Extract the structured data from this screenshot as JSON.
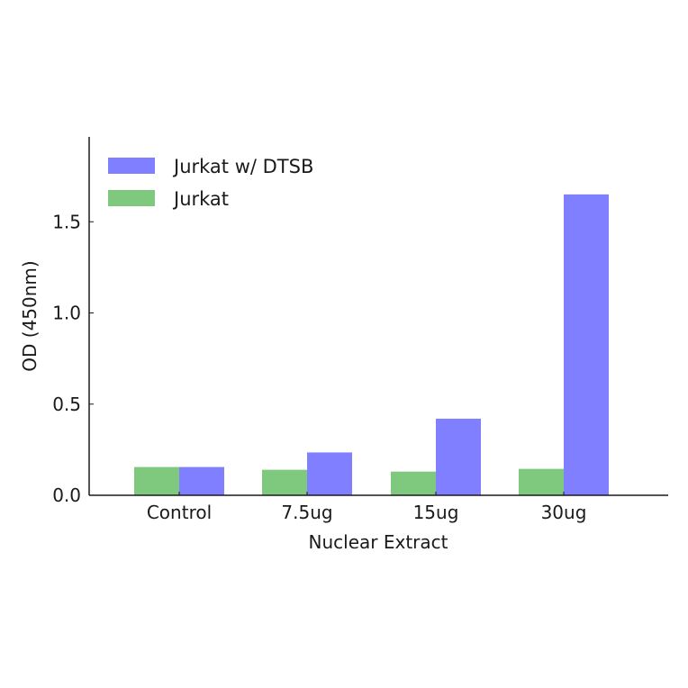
{
  "chart_data": {
    "type": "bar",
    "title": "",
    "xlabel": "Nuclear Extract",
    "ylabel": "OD (450nm)",
    "categories": [
      "Control",
      "7.5ug",
      "15ug",
      "30ug"
    ],
    "series": [
      {
        "name": "Jurkat",
        "color": "#7fc97f",
        "values": [
          0.155,
          0.14,
          0.13,
          0.145
        ]
      },
      {
        "name": "Jurkat w/ DTSB",
        "color": "#7f7fff",
        "values": [
          0.155,
          0.235,
          0.42,
          1.65
        ]
      }
    ],
    "ylim": [
      0,
      1.97
    ],
    "yticks": [
      0.0,
      0.5,
      1.0,
      1.5
    ],
    "ytick_labels": [
      "0.0",
      "0.5",
      "1.0",
      "1.5"
    ],
    "grid": false,
    "legend": {
      "position": "upper left",
      "entries": [
        "Jurkat w/ DTSB",
        "Jurkat"
      ]
    }
  }
}
